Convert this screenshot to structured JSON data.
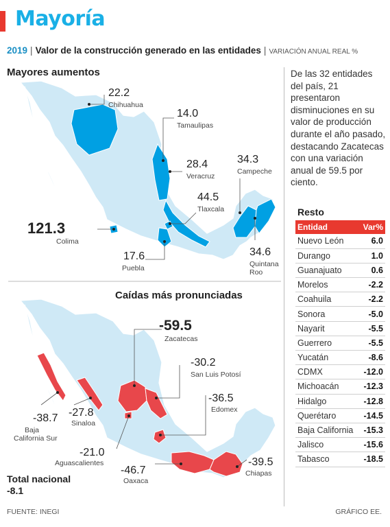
{
  "header": {
    "title": "Mayoría",
    "year": "2019",
    "subtitle": "Valor de la construcción generado en las entidades",
    "unit": "Variación anual real %"
  },
  "note": "De las 32 entidades del país, 21 presentaron disminuciones en su valor de producción durante el año pasado, destacando Zacatecas con una variación anual de 59.5 por ciento.",
  "colors": {
    "increase": "#00a0e3",
    "decrease": "#e8474b",
    "base": "#cfe9f6",
    "accent": "#e8392f"
  },
  "chart_data": [
    {
      "type": "map",
      "title": "Mayores aumentos",
      "values": [
        {
          "label": "Chihuahua",
          "value": "22.2"
        },
        {
          "label": "Tamaulipas",
          "value": "14.0"
        },
        {
          "label": "Veracruz",
          "value": "28.4"
        },
        {
          "label": "Campeche",
          "value": "34.3"
        },
        {
          "label": "Tlaxcala",
          "value": "44.5"
        },
        {
          "label": "Colima",
          "value": "121.3"
        },
        {
          "label": "Puebla",
          "value": "17.6"
        },
        {
          "label": "Quintana Roo",
          "value": "34.6"
        }
      ]
    },
    {
      "type": "map",
      "title": "Caídas más pronunciadas",
      "values": [
        {
          "label": "Zacatecas",
          "value": "-59.5"
        },
        {
          "label": "San Luis Potosí",
          "value": "-30.2"
        },
        {
          "label": "Edomex",
          "value": "-36.5"
        },
        {
          "label": "Baja California Sur",
          "value": "-38.7"
        },
        {
          "label": "Sinaloa",
          "value": "-27.8"
        },
        {
          "label": "Aguascalientes",
          "value": "-21.0"
        },
        {
          "label": "Oaxaca",
          "value": "-46.7"
        },
        {
          "label": "Chiapas",
          "value": "-39.5"
        }
      ]
    },
    {
      "type": "table",
      "title": "Resto",
      "columns": [
        "Entidad",
        "Var%"
      ],
      "rows": [
        [
          "Nuevo León",
          "6.0"
        ],
        [
          "Durango",
          "1.0"
        ],
        [
          "Guanajuato",
          "0.6"
        ],
        [
          "Morelos",
          "-2.2"
        ],
        [
          "Coahuila",
          "-2.2"
        ],
        [
          "Sonora",
          "-5.0"
        ],
        [
          "Nayarit",
          "-5.5"
        ],
        [
          "Guerrero",
          "-5.5"
        ],
        [
          "Yucatán",
          "-8.6"
        ],
        [
          "CDMX",
          "-12.0"
        ],
        [
          "Michoacán",
          "-12.3"
        ],
        [
          "Hidalgo",
          "-12.8"
        ],
        [
          "Querétaro",
          "-14.5"
        ],
        [
          "Baja California",
          "-15.3"
        ],
        [
          "Jalisco",
          "-15.6"
        ],
        [
          "Tabasco",
          "-18.5"
        ]
      ]
    }
  ],
  "total": {
    "label": "Total nacional",
    "value": "-8.1"
  },
  "footer": {
    "source": "FUENTE: INEGI",
    "credit": "GRÁFICO EE."
  }
}
